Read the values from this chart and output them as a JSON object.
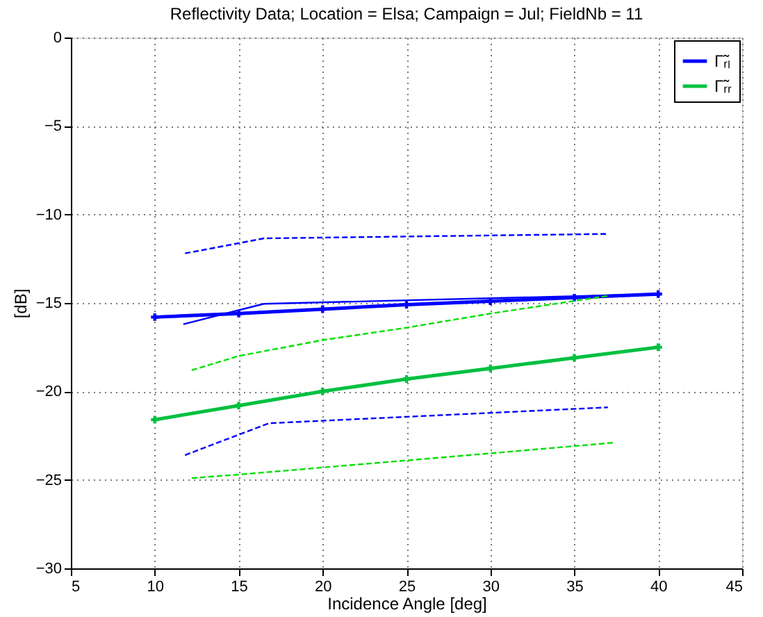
{
  "chart_data": {
    "type": "line",
    "title": "Reflectivity Data; Location = Elsa; Campaign = Jul; FieldNb = 11",
    "xlabel": "Incidence Angle [deg]",
    "ylabel": "[dB]",
    "xlim": [
      5,
      45
    ],
    "ylim": [
      -30,
      0
    ],
    "xticks": [
      5,
      10,
      15,
      20,
      25,
      30,
      35,
      40,
      45
    ],
    "yticks": [
      -30,
      -25,
      -20,
      -15,
      -10,
      -5,
      0
    ],
    "grid": true,
    "legend": "top right",
    "series": [
      {
        "name": "Γ̃ᵣₗ",
        "color": "#0000ff",
        "marker": "cross",
        "line_style": "solid",
        "x": [
          10,
          15,
          20,
          25,
          30,
          35,
          40
        ],
        "values": [
          -15.8,
          -15.6,
          -15.35,
          -15.1,
          -14.9,
          -14.7,
          -14.5
        ]
      },
      {
        "name": "Γ̃ᵣᵣ",
        "color": "#00c040",
        "marker": "cross",
        "line_style": "solid",
        "x": [
          10,
          15,
          20,
          25,
          30,
          35,
          40
        ],
        "values": [
          -21.6,
          -20.8,
          -20.0,
          -19.3,
          -18.7,
          -18.1,
          -17.5
        ]
      },
      {
        "color": "#0000ff",
        "marker": "none",
        "line_style": "solid",
        "x": [
          11.7,
          16.5,
          40
        ],
        "values": [
          -16.2,
          -15.05,
          -14.5
        ]
      },
      {
        "color": "#0000ff",
        "marker": "none",
        "line_style": "dashed",
        "x": [
          11.8,
          16.5,
          37
        ],
        "values": [
          -12.2,
          -11.35,
          -11.1
        ]
      },
      {
        "color": "#0000ff",
        "marker": "none",
        "line_style": "dashed",
        "x": [
          11.8,
          16.8,
          37
        ],
        "values": [
          -23.6,
          -21.8,
          -20.9
        ]
      },
      {
        "color": "#00e000",
        "marker": "none",
        "line_style": "dashed",
        "x": [
          12.2,
          15,
          20,
          25,
          30,
          37
        ],
        "values": [
          -18.8,
          -18.0,
          -17.1,
          -16.4,
          -15.6,
          -14.6
        ]
      },
      {
        "color": "#00e000",
        "marker": "none",
        "line_style": "dashed",
        "x": [
          12.2,
          15,
          20,
          25,
          30,
          37.3
        ],
        "values": [
          -24.9,
          -24.7,
          -24.3,
          -23.9,
          -23.5,
          -22.9
        ]
      }
    ]
  }
}
